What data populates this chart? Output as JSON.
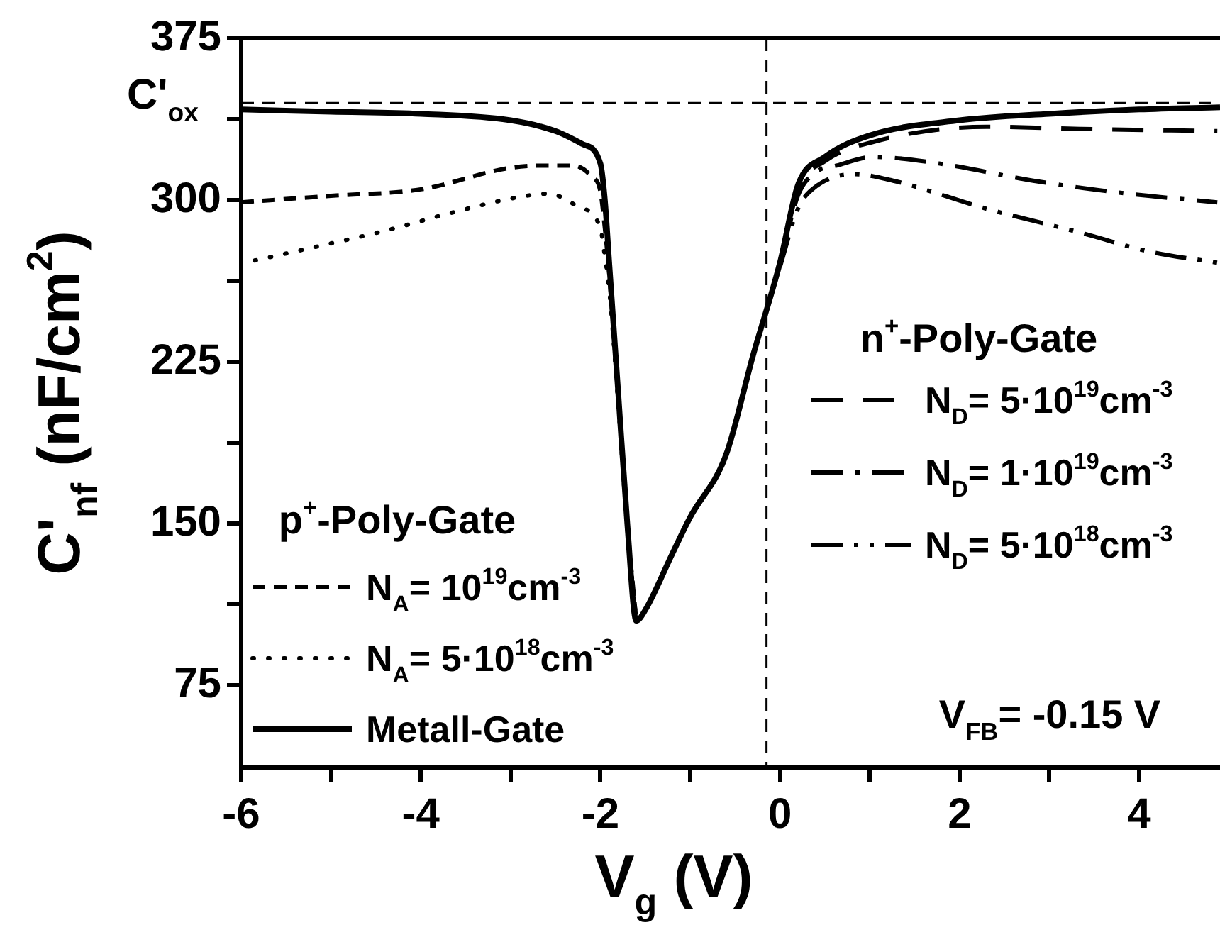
{
  "chart_data": {
    "type": "line",
    "xlabel": "V$_{g}$ (V)",
    "ylabel": "C'$_{nf}$ (nF/cm$^{2}$)",
    "xlim": [
      -6,
      4.9
    ],
    "ylim": [
      37,
      375
    ],
    "xticks": [
      -6,
      {
        "value": -5,
        "label": null
      },
      -4,
      {
        "value": -3,
        "label": null
      },
      -2,
      {
        "value": -1,
        "label": null
      },
      0,
      {
        "value": 1,
        "label": null
      },
      2,
      {
        "value": 3,
        "label": null
      },
      4
    ],
    "yticks": [
      75,
      {
        "value": 112.5,
        "label": null
      },
      150,
      {
        "value": 187.5,
        "label": null
      },
      225,
      {
        "value": 262.5,
        "label": null
      },
      300,
      {
        "value": 337.5,
        "label": null
      },
      375
    ],
    "grid": false,
    "legend": "bottom left",
    "marker": "none",
    "annotations": [
      "p$^{+}$-Poly-Gate",
      "n$^{+}$-Poly-Gate",
      "V$_{FB}$= -0.15 V"
    ],
    "ref_lines": [
      {
        "axis": "y",
        "value": 345,
        "label": "C'$_{ox}$",
        "line_style": "dashed",
        "color": "#000000"
      },
      {
        "axis": "x",
        "value": -0.15,
        "line_style": "dashed",
        "color": "#000000"
      }
    ],
    "series": [
      {
        "name": "N$_{A}$= 10$^{19}$cm$^{-3}$",
        "color": "#000000",
        "line_style": "dashed",
        "x": [
          -6,
          -5,
          -4,
          -3,
          -2.6,
          -2.3,
          -2.1,
          -2,
          -1.95,
          -1.9,
          -1.8,
          -1.7,
          -1.6
        ],
        "values": [
          299,
          302,
          305,
          315,
          316,
          316,
          311,
          304,
          287,
          265,
          208,
          150,
          105
        ]
      },
      {
        "name": "N$_{A}$= 5·10$^{18}$cm$^{-3}$",
        "color": "#000000",
        "line_style": "dotted",
        "x": [
          -5.85,
          -5.42,
          -4.38,
          -3.67,
          -2.96,
          -2.58,
          -2.25,
          -2,
          -1.95,
          -1.9,
          -1.8,
          -1.7,
          -1.6
        ],
        "values": [
          272,
          276,
          286,
          294,
          301,
          303,
          297,
          287,
          274,
          258,
          205,
          148,
          105
        ]
      },
      {
        "name": "Metall-Gate",
        "color": "#000000",
        "line_style": "solid",
        "x": [
          -6,
          -5,
          -4,
          -3,
          -2.5,
          -2.2,
          -2,
          -1.95,
          -1.9,
          -1.8,
          -1.7,
          -1.6,
          -1.5,
          -1.2,
          -1,
          -0.6,
          -0.3,
          0,
          0.2,
          0.5,
          1,
          2,
          3,
          4,
          4.9
        ],
        "values": [
          342,
          341,
          340,
          337,
          332,
          326,
          317,
          300,
          270,
          210,
          150,
          105,
          110,
          136,
          153,
          182,
          228,
          271,
          307,
          320,
          330,
          337,
          340,
          342,
          343
        ]
      },
      {
        "name": "N$_{D}$= 5·10$^{19}$cm$^{-3}$",
        "color": "#000000",
        "line_style": "longdash",
        "x": [
          0,
          0.2,
          0.5,
          1.04,
          2.3,
          3.34,
          4.87
        ],
        "values": [
          271,
          305,
          318,
          327,
          334,
          333,
          332
        ]
      },
      {
        "name": "N$_{D}$= 1·10$^{19}$cm$^{-3}$",
        "color": "#000000",
        "line_style": "dashdot",
        "x": [
          0,
          0.2,
          0.4,
          0.63,
          1.04,
          1.77,
          2.82,
          3.87,
          4.87
        ],
        "values": [
          270,
          302,
          313,
          316,
          320,
          317,
          309,
          303,
          299
        ]
      },
      {
        "name": "N$_{D}$= 5·10$^{18}$cm$^{-3}$",
        "color": "#000000",
        "line_style": "dashdotdot",
        "x": [
          0,
          0.2,
          0.36,
          0.83,
          1.26,
          2.3,
          3.34,
          4.13,
          4.87
        ],
        "values": [
          269,
          296,
          305,
          312,
          309,
          296,
          285,
          276,
          271
        ]
      }
    ]
  }
}
